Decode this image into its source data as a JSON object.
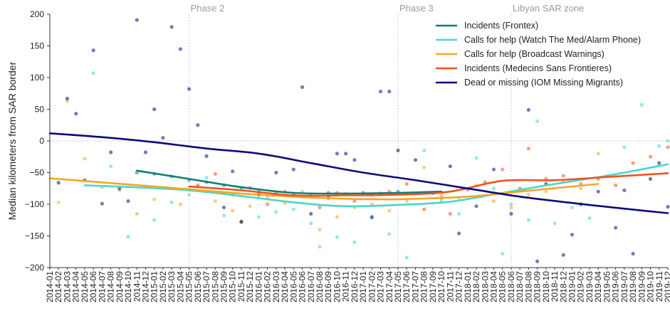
{
  "chart_data": {
    "type": "line",
    "ylabel": "Median kilometers from SAR border",
    "ylim": [
      -200,
      200
    ],
    "yticks": [
      200,
      150,
      100,
      50,
      0,
      -50,
      -100,
      -150,
      -200
    ],
    "ytick_labels": [
      "200",
      "150",
      "100",
      "50",
      "0",
      "−50",
      "−100",
      "−150",
      "−200"
    ],
    "grid": false,
    "legend_position": "top-right",
    "reference_line": {
      "y": 0,
      "style": "dotted"
    },
    "x": [
      "2014-01",
      "2014-02",
      "2014-03",
      "2014-04",
      "2014-05",
      "2014-06",
      "2014-07",
      "2014-08",
      "2014-09",
      "2014-10",
      "2014-11",
      "2014-12",
      "2015-01",
      "2015-02",
      "2015-03",
      "2015-04",
      "2015-05",
      "2015-06",
      "2015-07",
      "2015-08",
      "2015-09",
      "2015-10",
      "2015-11",
      "2015-12",
      "2016-01",
      "2016-02",
      "2016-03",
      "2016-04",
      "2016-05",
      "2016-06",
      "2016-07",
      "2016-08",
      "2016-09",
      "2016-10",
      "2016-11",
      "2016-12",
      "2017-01",
      "2017-02",
      "2017-03",
      "2017-04",
      "2017-05",
      "2017-06",
      "2017-07",
      "2017-08",
      "2017-09",
      "2017-10",
      "2017-11",
      "2017-12",
      "2018-01",
      "2018-02",
      "2018-03",
      "2018-04",
      "2018-05",
      "2018-06",
      "2018-07",
      "2018-08",
      "2018-09",
      "2018-10",
      "2018-11",
      "2018-12",
      "2019-01",
      "2019-02",
      "2019-03",
      "2019-04",
      "2019-05",
      "2019-06",
      "2019-07",
      "2019-08",
      "2019-09",
      "2019-10",
      "2019-11",
      "2019-12"
    ],
    "phases": [
      {
        "label": "Phase 2",
        "x": "2015-05"
      },
      {
        "label": "Phase 3",
        "x": "2017-05"
      },
      {
        "label": "Libyan SAR zone",
        "x": "2018-06"
      }
    ],
    "series": [
      {
        "name": "Incidents (Frontex)",
        "color": "#0f7f7a",
        "trend": [
          [
            "2014-11",
            -47
          ],
          [
            "2015-05",
            -60
          ],
          [
            "2015-11",
            -73
          ],
          [
            "2016-05",
            -82
          ],
          [
            "2016-11",
            -83
          ],
          [
            "2017-05",
            -82
          ],
          [
            "2017-10",
            -80
          ]
        ],
        "points": [
          [
            "2014-11",
            -50
          ],
          [
            "2015-01",
            -52
          ],
          [
            "2015-03",
            -56
          ],
          [
            "2015-05",
            -62
          ],
          [
            "2015-07",
            -65
          ],
          [
            "2015-09",
            -70
          ],
          [
            "2015-11",
            -74
          ],
          [
            "2016-01",
            -80
          ],
          [
            "2016-03",
            -83
          ],
          [
            "2016-05",
            -84
          ],
          [
            "2016-07",
            -85
          ],
          [
            "2016-09",
            -82
          ],
          [
            "2016-11",
            -84
          ],
          [
            "2017-01",
            -82
          ],
          [
            "2017-03",
            -83
          ],
          [
            "2017-05",
            -80
          ],
          [
            "2017-07",
            -83
          ],
          [
            "2017-09",
            -82
          ]
        ]
      },
      {
        "name": "Calls for help (Watch The Med/Alarm Phone)",
        "color": "#45d9cc",
        "trend": [
          [
            "2014-05",
            -70
          ],
          [
            "2015-05",
            -78
          ],
          [
            "2016-05",
            -97
          ],
          [
            "2016-11",
            -103
          ],
          [
            "2017-05",
            -101
          ],
          [
            "2017-11",
            -96
          ],
          [
            "2018-05",
            -82
          ],
          [
            "2018-11",
            -68
          ],
          [
            "2019-05",
            -55
          ],
          [
            "2019-12",
            -37
          ]
        ],
        "points": [
          [
            "2014-06",
            107
          ],
          [
            "2014-08",
            -40
          ],
          [
            "2014-10",
            -151
          ],
          [
            "2015-01",
            -125
          ],
          [
            "2015-03",
            -97
          ],
          [
            "2015-05",
            -85
          ],
          [
            "2015-07",
            -58
          ],
          [
            "2015-09",
            -118
          ],
          [
            "2015-11",
            -127
          ],
          [
            "2016-01",
            -120
          ],
          [
            "2016-03",
            -112
          ],
          [
            "2016-05",
            -108
          ],
          [
            "2016-07",
            -130
          ],
          [
            "2016-08",
            -167
          ],
          [
            "2016-10",
            -152
          ],
          [
            "2016-12",
            -160
          ],
          [
            "2017-02",
            -122
          ],
          [
            "2017-04",
            -147
          ],
          [
            "2017-06",
            -184
          ],
          [
            "2017-08",
            -15
          ],
          [
            "2017-10",
            -95
          ],
          [
            "2017-12",
            -115
          ],
          [
            "2018-02",
            -27
          ],
          [
            "2018-04",
            -75
          ],
          [
            "2018-05",
            -178
          ],
          [
            "2018-06",
            -100
          ],
          [
            "2018-08",
            -125
          ],
          [
            "2018-09",
            31
          ],
          [
            "2018-11",
            -130
          ],
          [
            "2019-01",
            -105
          ],
          [
            "2019-03",
            -122
          ],
          [
            "2019-05",
            -55
          ],
          [
            "2019-07",
            -10
          ],
          [
            "2019-09",
            57
          ],
          [
            "2019-11",
            -8
          ],
          [
            "2019-12",
            0
          ]
        ]
      },
      {
        "name": "Calls for help (Broadcast Warnings)",
        "color": "#f5a623",
        "trend": [
          [
            "2014-01",
            -59
          ],
          [
            "2015-01",
            -72
          ],
          [
            "2016-01",
            -85
          ],
          [
            "2016-10",
            -91
          ],
          [
            "2017-05",
            -92
          ],
          [
            "2018-01",
            -88
          ],
          [
            "2018-07",
            -80
          ],
          [
            "2019-04",
            -68
          ]
        ],
        "points": [
          [
            "2014-02",
            -97
          ],
          [
            "2014-03",
            63
          ],
          [
            "2014-05",
            -28
          ],
          [
            "2014-07",
            -73
          ],
          [
            "2014-09",
            -78
          ],
          [
            "2014-11",
            -115
          ],
          [
            "2015-01",
            -92
          ],
          [
            "2015-04",
            -100
          ],
          [
            "2015-06",
            -72
          ],
          [
            "2015-08",
            -95
          ],
          [
            "2015-10",
            -110
          ],
          [
            "2015-12",
            -103
          ],
          [
            "2016-02",
            -90
          ],
          [
            "2016-04",
            -98
          ],
          [
            "2016-06",
            -80
          ],
          [
            "2016-08",
            -140
          ],
          [
            "2016-10",
            -120
          ],
          [
            "2016-12",
            -105
          ],
          [
            "2017-02",
            -100
          ],
          [
            "2017-04",
            -110
          ],
          [
            "2017-06",
            -95
          ],
          [
            "2017-08",
            -42
          ],
          [
            "2017-10",
            -85
          ],
          [
            "2017-12",
            -90
          ],
          [
            "2018-02",
            -70
          ],
          [
            "2018-04",
            -95
          ],
          [
            "2018-06",
            -105
          ],
          [
            "2018-08",
            -85
          ],
          [
            "2018-10",
            -80
          ],
          [
            "2018-12",
            -65
          ],
          [
            "2019-02",
            -75
          ],
          [
            "2019-04",
            -20
          ]
        ]
      },
      {
        "name": "Incidents (Medecins Sans Frontieres)",
        "color": "#f4511e",
        "trend": [
          [
            "2015-05",
            -72
          ],
          [
            "2015-11",
            -78
          ],
          [
            "2016-05",
            -86
          ],
          [
            "2016-11",
            -86
          ],
          [
            "2017-05",
            -85
          ],
          [
            "2017-11",
            -80
          ],
          [
            "2018-05",
            -63
          ],
          [
            "2018-11",
            -62
          ],
          [
            "2019-05",
            -57
          ],
          [
            "2019-12",
            -51
          ]
        ],
        "points": [
          [
            "2015-06",
            -70
          ],
          [
            "2015-08",
            -52
          ],
          [
            "2015-10",
            -85
          ],
          [
            "2015-11",
            -127
          ],
          [
            "2015-12",
            -74
          ],
          [
            "2016-02",
            -100
          ],
          [
            "2016-04",
            -80
          ],
          [
            "2016-06",
            -88
          ],
          [
            "2016-08",
            -105
          ],
          [
            "2016-10",
            -82
          ],
          [
            "2016-12",
            -95
          ],
          [
            "2017-02",
            -85
          ],
          [
            "2017-04",
            -80
          ],
          [
            "2017-06",
            -68
          ],
          [
            "2017-08",
            -108
          ],
          [
            "2017-10",
            -90
          ],
          [
            "2017-11",
            -115
          ],
          [
            "2018-01",
            -77
          ],
          [
            "2018-03",
            -65
          ],
          [
            "2018-05",
            -45
          ],
          [
            "2018-07",
            -75
          ],
          [
            "2018-08",
            -12
          ],
          [
            "2018-10",
            -60
          ],
          [
            "2018-12",
            -55
          ],
          [
            "2019-02",
            -68
          ],
          [
            "2019-04",
            -60
          ],
          [
            "2019-06",
            -70
          ],
          [
            "2019-08",
            -35
          ],
          [
            "2019-10",
            -25
          ],
          [
            "2019-12",
            -10
          ]
        ]
      },
      {
        "name": "Dead or missing (IOM Missing Migrants)",
        "color": "#0b0b7a",
        "trend": [
          [
            "2014-01",
            12
          ],
          [
            "2014-07",
            6
          ],
          [
            "2015-01",
            -2
          ],
          [
            "2015-07",
            -12
          ],
          [
            "2016-01",
            -20
          ],
          [
            "2016-07",
            -35
          ],
          [
            "2017-01",
            -50
          ],
          [
            "2017-07",
            -62
          ],
          [
            "2018-01",
            -75
          ],
          [
            "2018-07",
            -88
          ],
          [
            "2019-01",
            -98
          ],
          [
            "2019-07",
            -107
          ],
          [
            "2019-12",
            -114
          ]
        ],
        "points": [
          [
            "2014-02",
            -66
          ],
          [
            "2014-03",
            67
          ],
          [
            "2014-04",
            43
          ],
          [
            "2014-05",
            -62
          ],
          [
            "2014-06",
            143
          ],
          [
            "2014-07",
            -99
          ],
          [
            "2014-08",
            -18
          ],
          [
            "2014-09",
            -75
          ],
          [
            "2014-10",
            -95
          ],
          [
            "2014-11",
            191
          ],
          [
            "2014-12",
            -18
          ],
          [
            "2015-01",
            50
          ],
          [
            "2015-02",
            5
          ],
          [
            "2015-03",
            180
          ],
          [
            "2015-04",
            145
          ],
          [
            "2015-05",
            82
          ],
          [
            "2015-06",
            25
          ],
          [
            "2015-07",
            -24
          ],
          [
            "2015-09",
            -105
          ],
          [
            "2015-10",
            -48
          ],
          [
            "2015-11",
            -128
          ],
          [
            "2016-01",
            -85
          ],
          [
            "2016-03",
            -50
          ],
          [
            "2016-05",
            -45
          ],
          [
            "2016-06",
            85
          ],
          [
            "2016-07",
            -115
          ],
          [
            "2016-09",
            -90
          ],
          [
            "2016-10",
            -20
          ],
          [
            "2016-11",
            -20
          ],
          [
            "2016-12",
            -30
          ],
          [
            "2017-02",
            -120
          ],
          [
            "2017-03",
            78
          ],
          [
            "2017-04",
            78
          ],
          [
            "2017-05",
            -15
          ],
          [
            "2017-07",
            -30
          ],
          [
            "2017-09",
            -82
          ],
          [
            "2017-11",
            -40
          ],
          [
            "2017-12",
            -146
          ],
          [
            "2018-02",
            -103
          ],
          [
            "2018-04",
            -45
          ],
          [
            "2018-06",
            -115
          ],
          [
            "2018-08",
            49
          ],
          [
            "2018-09",
            -190
          ],
          [
            "2018-10",
            -68
          ],
          [
            "2018-12",
            -180
          ],
          [
            "2019-01",
            -148
          ],
          [
            "2019-02",
            -100
          ],
          [
            "2019-04",
            -80
          ],
          [
            "2019-06",
            -137
          ],
          [
            "2019-07",
            -78
          ],
          [
            "2019-08",
            -178
          ],
          [
            "2019-10",
            -60
          ],
          [
            "2019-11",
            -35
          ],
          [
            "2019-12",
            -104
          ]
        ]
      }
    ]
  }
}
